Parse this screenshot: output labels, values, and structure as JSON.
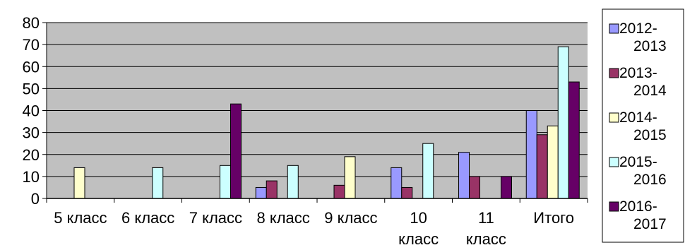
{
  "chart_data": {
    "type": "bar",
    "title": "",
    "xlabel": "",
    "ylabel": "",
    "ylim": [
      0,
      80
    ],
    "yticks": [
      0,
      10,
      20,
      30,
      40,
      50,
      60,
      70,
      80
    ],
    "grid": true,
    "legend_position": "right",
    "plot_background": "#c0c0c0",
    "categories": [
      [
        "5 класс"
      ],
      [
        "6 класс"
      ],
      [
        "7 класс"
      ],
      [
        "8 класс"
      ],
      [
        "9 класс"
      ],
      [
        "10",
        "класс"
      ],
      [
        "11",
        "класс"
      ],
      [
        "Итого"
      ]
    ],
    "series": [
      {
        "name": [
          "2012-",
          "2013"
        ],
        "color": "#9999ff",
        "values": [
          0,
          0,
          0,
          5,
          0,
          14,
          21,
          40
        ]
      },
      {
        "name": [
          "2013-",
          "2014"
        ],
        "color": "#993366",
        "values": [
          0,
          0,
          0,
          8,
          6,
          5,
          10,
          29
        ]
      },
      {
        "name": [
          "2014-",
          "2015"
        ],
        "color": "#ffffcc",
        "values": [
          14,
          0,
          0,
          0,
          19,
          0,
          0,
          33
        ]
      },
      {
        "name": [
          "2015-",
          "2016"
        ],
        "color": "#ccffff",
        "values": [
          0,
          14,
          15,
          15,
          0,
          25,
          0,
          69
        ]
      },
      {
        "name": [
          "2016-",
          "2017"
        ],
        "color": "#660066",
        "values": [
          0,
          0,
          43,
          0,
          0,
          0,
          10,
          53
        ]
      }
    ]
  }
}
